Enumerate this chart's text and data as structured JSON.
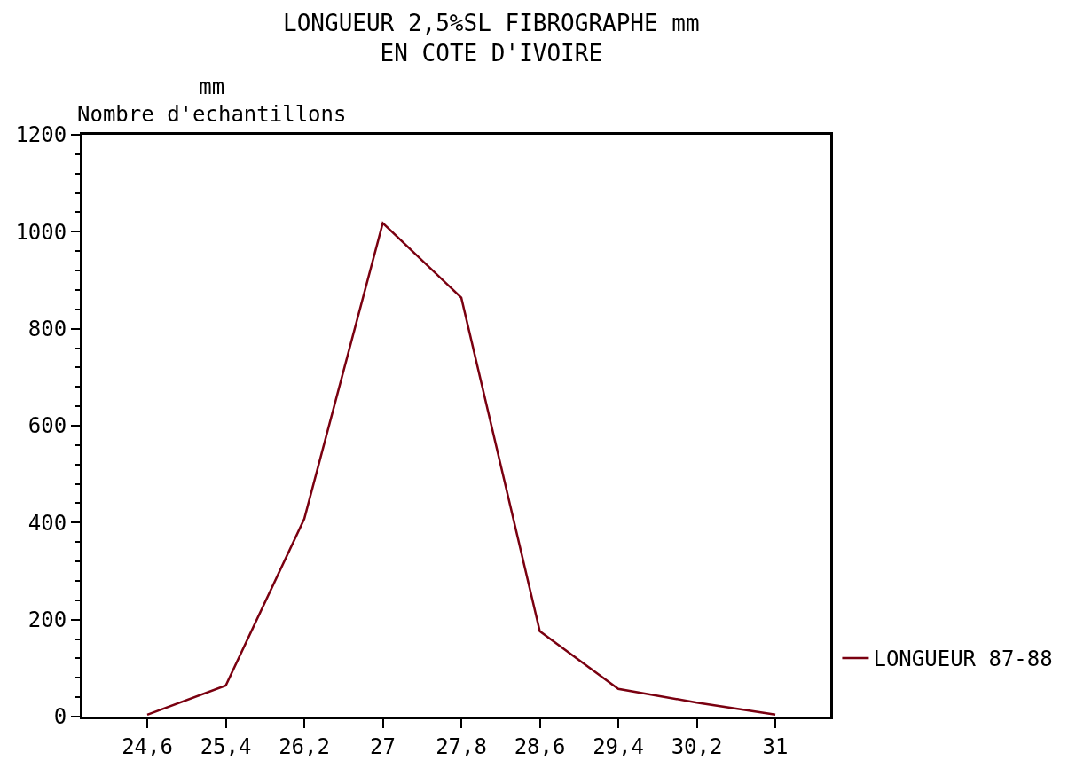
{
  "chart_data": {
    "type": "line",
    "title": "LONGUEUR 2,5%SL FIBROGRAPHE mm\nEN COTE D'IVOIRE",
    "ylabel": "mm\nNombre d'echantillons",
    "x": [
      24.6,
      25.4,
      26.2,
      27.0,
      27.8,
      28.6,
      29.4,
      30.2,
      31.0
    ],
    "series": [
      {
        "name": "LONGUEUR 87-88",
        "color": "#7a0010",
        "values": [
          4,
          64,
          408,
          1018,
          864,
          176,
          57,
          29,
          4
        ]
      }
    ],
    "xlim": [
      23.94,
      31.56
    ],
    "xticks": [
      {
        "value": 24.6,
        "label": "24,6"
      },
      {
        "value": 25.4,
        "label": "25,4"
      },
      {
        "value": 26.2,
        "label": "26,2"
      },
      {
        "value": 27.0,
        "label": "27"
      },
      {
        "value": 27.8,
        "label": "27,8"
      },
      {
        "value": 28.6,
        "label": "28,6"
      },
      {
        "value": 29.4,
        "label": "29,4"
      },
      {
        "value": 30.2,
        "label": "30,2"
      },
      {
        "value": 31.0,
        "label": "31"
      }
    ],
    "ylim": [
      0,
      1200
    ],
    "yticks": [
      0,
      {
        "value": 40,
        "label": null
      },
      {
        "value": 80,
        "label": null
      },
      {
        "value": 120,
        "label": null
      },
      {
        "value": 160,
        "label": null
      },
      200,
      {
        "value": 240,
        "label": null
      },
      {
        "value": 280,
        "label": null
      },
      {
        "value": 320,
        "label": null
      },
      {
        "value": 360,
        "label": null
      },
      400,
      {
        "value": 440,
        "label": null
      },
      {
        "value": 480,
        "label": null
      },
      {
        "value": 520,
        "label": null
      },
      {
        "value": 560,
        "label": null
      },
      600,
      {
        "value": 640,
        "label": null
      },
      {
        "value": 680,
        "label": null
      },
      {
        "value": 720,
        "label": null
      },
      {
        "value": 760,
        "label": null
      },
      800,
      {
        "value": 840,
        "label": null
      },
      {
        "value": 880,
        "label": null
      },
      {
        "value": 920,
        "label": null
      },
      {
        "value": 960,
        "label": null
      },
      1000,
      {
        "value": 1040,
        "label": null
      },
      {
        "value": 1080,
        "label": null
      },
      {
        "value": 1120,
        "label": null
      },
      {
        "value": 1160,
        "label": null
      },
      1200
    ],
    "grid": false,
    "legend": "bottom right",
    "marker": "none",
    "line_style": "solid"
  }
}
